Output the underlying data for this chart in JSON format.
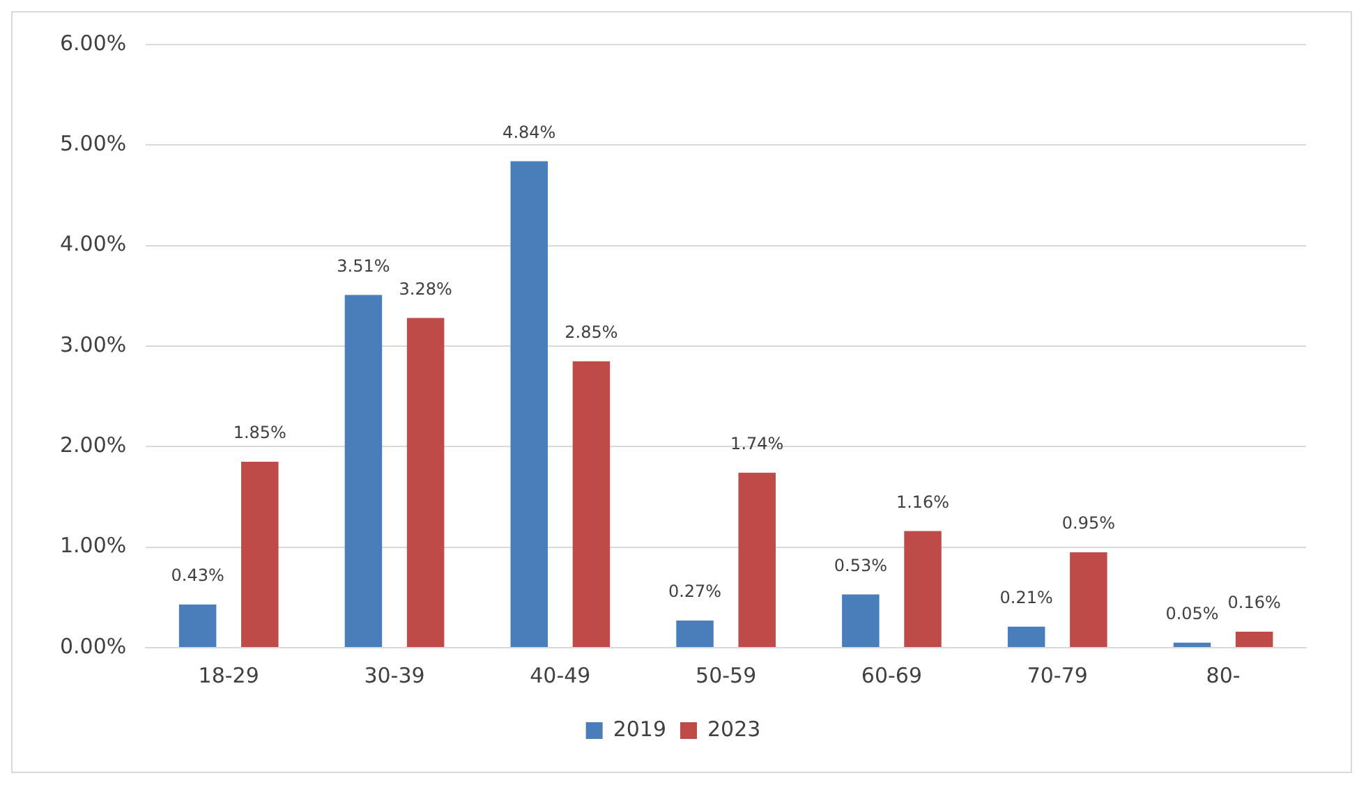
{
  "chart_data": {
    "type": "bar",
    "categories": [
      "18-29",
      "30-39",
      "40-49",
      "50-59",
      "60-69",
      "70-79",
      "80-"
    ],
    "series": [
      {
        "name": "2019",
        "color": "#4a7ebb",
        "values": [
          0.43,
          3.51,
          4.84,
          0.27,
          0.53,
          0.21,
          0.05
        ],
        "value_labels": [
          "0.43%",
          "3.51%",
          "4.84%",
          "0.27%",
          "0.53%",
          "0.21%",
          "0.05%"
        ]
      },
      {
        "name": "2023",
        "color": "#be4b48",
        "values": [
          1.85,
          3.28,
          2.85,
          1.74,
          1.16,
          0.95,
          0.16
        ],
        "value_labels": [
          "1.85%",
          "3.28%",
          "2.85%",
          "1.74%",
          "1.16%",
          "0.95%",
          "0.16%"
        ]
      }
    ],
    "ylim": [
      0,
      6
    ],
    "yticks": [
      {
        "value": 0,
        "label": "0.00%"
      },
      {
        "value": 1,
        "label": "1.00%"
      },
      {
        "value": 2,
        "label": "2.00%"
      },
      {
        "value": 3,
        "label": "3.00%"
      },
      {
        "value": 4,
        "label": "4.00%"
      },
      {
        "value": 5,
        "label": "5.00%"
      },
      {
        "value": 6,
        "label": "6.00%"
      }
    ],
    "grid": "y",
    "legend": "bottom"
  }
}
